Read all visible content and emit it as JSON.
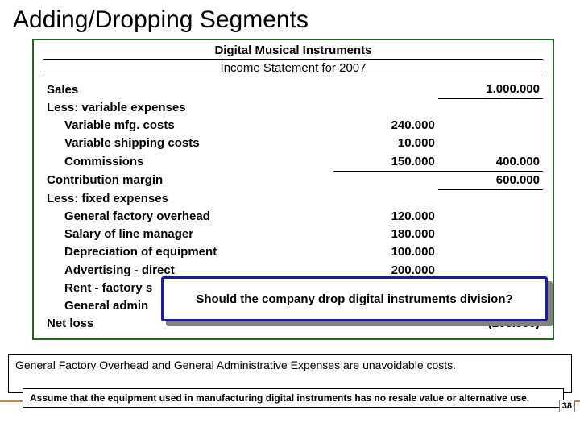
{
  "title": "Adding/Dropping Segments",
  "statement": {
    "company": "Digital Musical Instruments",
    "subtitle": "Income Statement for 2007",
    "rows": {
      "sales_label": "Sales",
      "sales_val": "1.000.000",
      "less_var_label": "Less: variable expenses",
      "var_mfg_label": "Variable mfg. costs",
      "var_mfg_val": "240.000",
      "var_ship_label": "Variable shipping costs",
      "var_ship_val": "10.000",
      "comm_label": "Commissions",
      "comm_val": "150.000",
      "var_total": "400.000",
      "cm_label": "Contribution margin",
      "cm_val": "600.000",
      "less_fixed_label": "Less: fixed expenses",
      "gfo_label": "General factory overhead",
      "gfo_val": "120.000",
      "salary_label": "Salary of line manager",
      "salary_val": "180.000",
      "dep_label": "Depreciation of equipment",
      "dep_val": "100.000",
      "adv_label": "Advertising - direct",
      "adv_val": "200.000",
      "rent_label": "Rent - factory s",
      "gae_label": "General admin",
      "netloss_label": "Net loss",
      "netloss_val": "(200.000)"
    }
  },
  "callout": "Should the company drop digital instruments division?",
  "note1": "General Factory Overhead and General Administrative Expenses are unavoidable costs.",
  "note2": "Assume that the equipment used in manufacturing digital instruments has no resale value or alternative use.",
  "page_number": "38",
  "colors": {
    "frame_border": "#226622",
    "callout_border": "#1a1aaa",
    "hr": "#d08030"
  }
}
